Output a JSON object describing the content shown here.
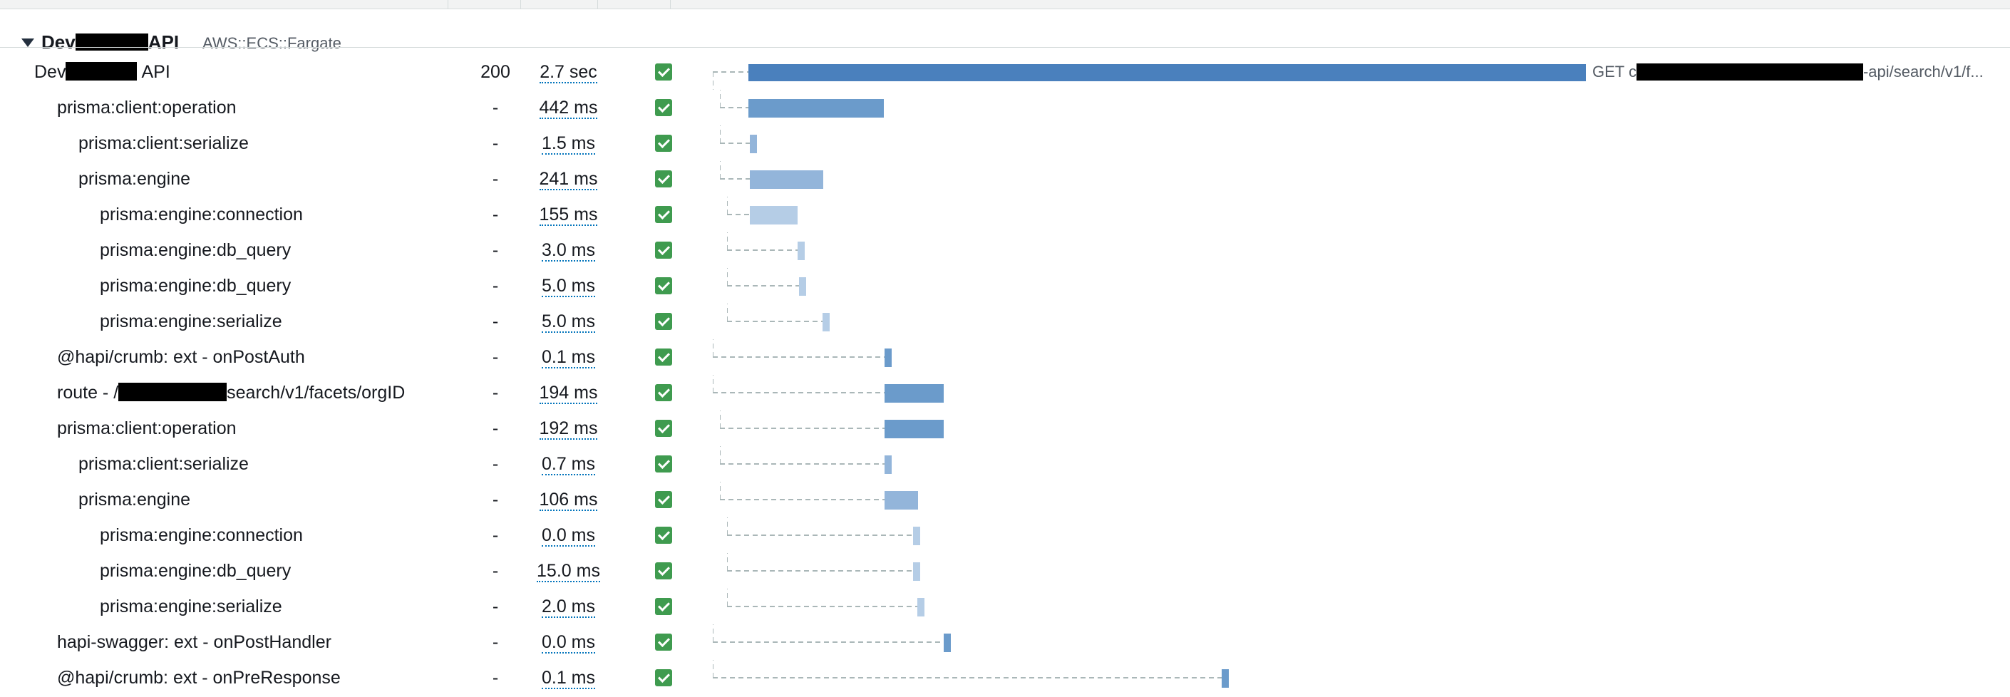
{
  "group": {
    "name_prefix": "Dev",
    "name_suffix": "API",
    "type": "AWS::ECS::Fargate"
  },
  "rows": [
    {
      "name": "Dev",
      "name_tail": "API",
      "status": "200",
      "duration": "2.7 sec",
      "ok": true,
      "bar_label_prefix": "GET c",
      "bar_label_suffix": "-api/search/v1/f..."
    },
    {
      "name": "prisma:client:operation",
      "status": "-",
      "duration": "442 ms",
      "ok": true
    },
    {
      "name": "prisma:client:serialize",
      "status": "-",
      "duration": "1.5 ms",
      "ok": true
    },
    {
      "name": "prisma:engine",
      "status": "-",
      "duration": "241 ms",
      "ok": true
    },
    {
      "name": "prisma:engine:connection",
      "status": "-",
      "duration": "155 ms",
      "ok": true
    },
    {
      "name": "prisma:engine:db_query",
      "status": "-",
      "duration": "3.0 ms",
      "ok": true
    },
    {
      "name": "prisma:engine:db_query",
      "status": "-",
      "duration": "5.0 ms",
      "ok": true
    },
    {
      "name": "prisma:engine:serialize",
      "status": "-",
      "duration": "5.0 ms",
      "ok": true
    },
    {
      "name": "@hapi/crumb: ext - onPostAuth",
      "status": "-",
      "duration": "0.1 ms",
      "ok": true
    },
    {
      "name": "route - /",
      "name_tail": "search/v1/facets/orgID",
      "status": "-",
      "duration": "194 ms",
      "ok": true
    },
    {
      "name": "prisma:client:operation",
      "status": "-",
      "duration": "192 ms",
      "ok": true
    },
    {
      "name": "prisma:client:serialize",
      "status": "-",
      "duration": "0.7 ms",
      "ok": true
    },
    {
      "name": "prisma:engine",
      "status": "-",
      "duration": "106 ms",
      "ok": true
    },
    {
      "name": "prisma:engine:connection",
      "status": "-",
      "duration": "0.0 ms",
      "ok": true
    },
    {
      "name": "prisma:engine:db_query",
      "status": "-",
      "duration": "15.0 ms",
      "ok": true
    },
    {
      "name": "prisma:engine:serialize",
      "status": "-",
      "duration": "2.0 ms",
      "ok": true
    },
    {
      "name": "hapi-swagger: ext - onPostHandler",
      "status": "-",
      "duration": "0.0 ms",
      "ok": true
    },
    {
      "name": "@hapi/crumb: ext - onPreResponse",
      "status": "-",
      "duration": "0.1 ms",
      "ok": true
    }
  ],
  "colors": {
    "bar_level0": "#4a80bd",
    "bar_level1": "#6b9bcb",
    "bar_level2": "#93b5da",
    "bar_level3": "#b5cde6",
    "status_ok": "#3f9b4f",
    "connector": "#aab7b8"
  }
}
